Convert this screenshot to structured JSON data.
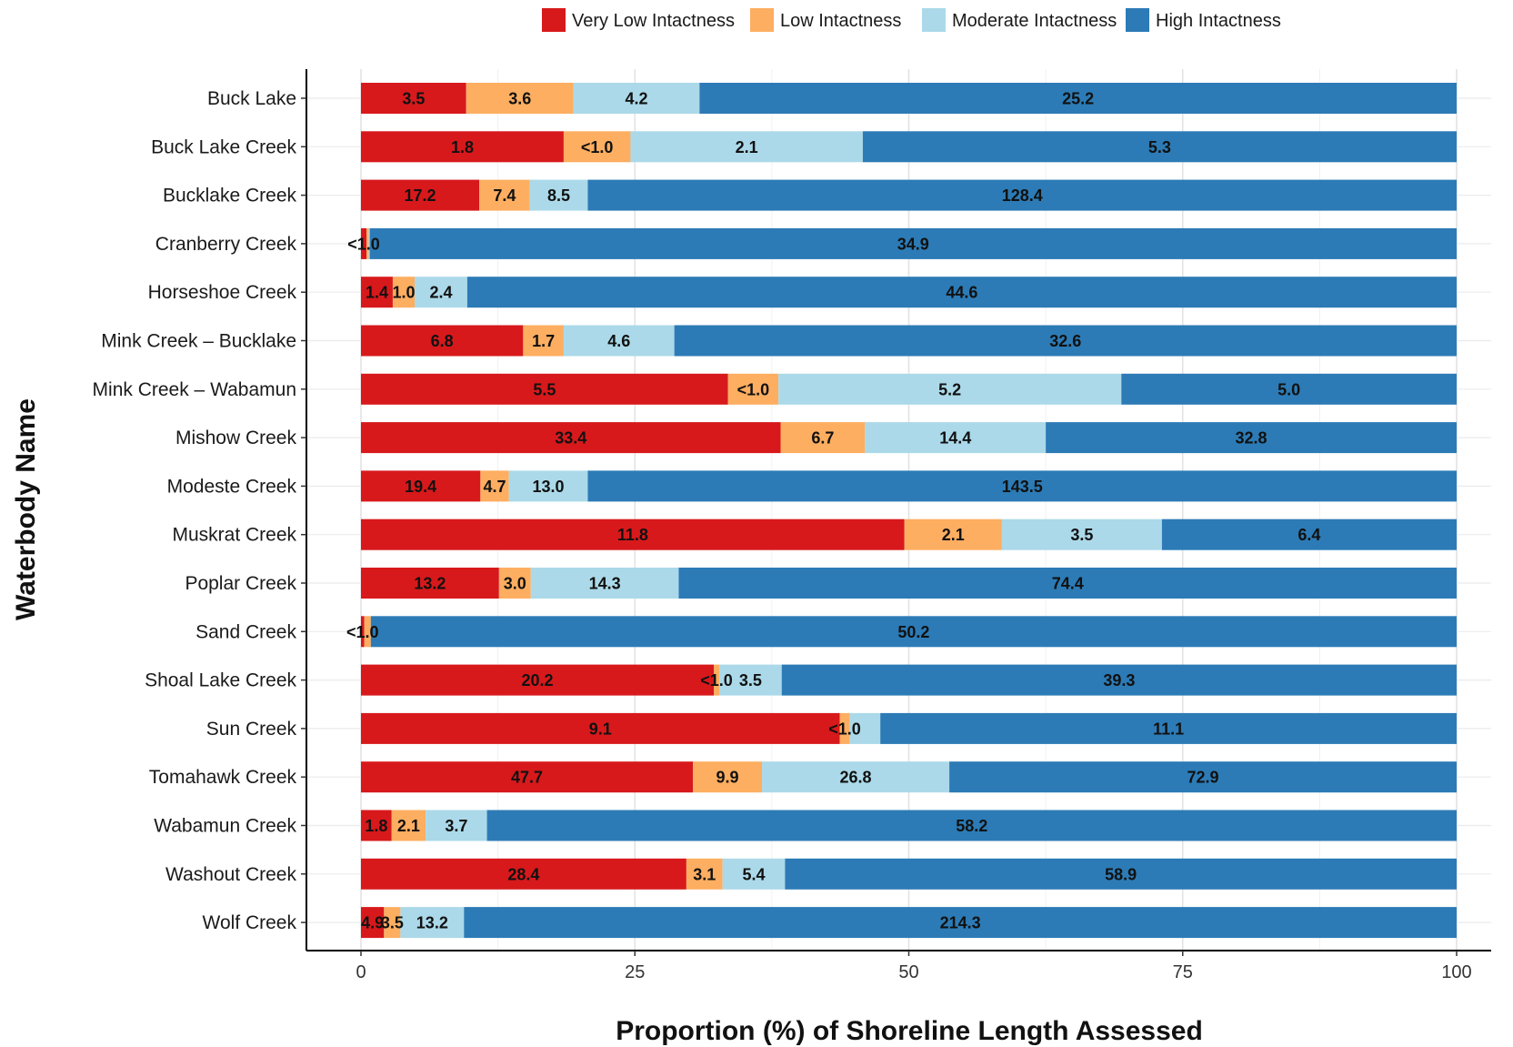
{
  "chart_data": {
    "type": "bar",
    "orientation": "horizontal",
    "stacked": true,
    "title": "",
    "xlabel": "Proportion (%) of Shoreline Length Assessed",
    "ylabel": "Waterbody Name",
    "xlim": [
      0,
      100
    ],
    "xticks": [
      0,
      25,
      50,
      75,
      100
    ],
    "grid": true,
    "legend_position": "top",
    "categories": [
      "Buck Lake",
      "Buck Lake Creek",
      "Bucklake Creek",
      "Cranberry Creek",
      "Horseshoe Creek",
      "Mink Creek – Bucklake",
      "Mink Creek – Wabamun",
      "Mishow Creek",
      "Modeste Creek",
      "Muskrat Creek",
      "Poplar Creek",
      "Sand Creek",
      "Shoal Lake Creek",
      "Sun Creek",
      "Tomahawk Creek",
      "Wabamun Creek",
      "Washout Creek",
      "Wolf Creek"
    ],
    "series": [
      {
        "name": "Very Low Intactness",
        "color": "#d7191c",
        "values": [
          9.6,
          18.5,
          10.8,
          0.5,
          2.9,
          14.8,
          33.5,
          38.3,
          10.9,
          49.6,
          12.6,
          0.3,
          32.2,
          43.7,
          30.3,
          2.8,
          29.7,
          2.1
        ],
        "labels": [
          "3.5",
          "1.8",
          "17.2",
          "<1.0",
          "1.4",
          "6.8",
          "5.5",
          "33.4",
          "19.4",
          "11.8",
          "13.2",
          "<1.0",
          "20.2",
          "9.1",
          "47.7",
          "1.8",
          "28.4",
          "4.9"
        ]
      },
      {
        "name": "Low Intactness",
        "color": "#fdae61",
        "values": [
          9.8,
          6.1,
          4.6,
          0.2,
          2.0,
          3.7,
          4.6,
          7.7,
          2.6,
          8.9,
          2.9,
          0.6,
          0.5,
          0.9,
          6.3,
          3.1,
          3.3,
          1.5
        ],
        "labels": [
          "3.6",
          "<1.0",
          "7.4",
          "",
          "1.0",
          "1.7",
          "<1.0",
          "6.7",
          "4.7",
          "2.1",
          "3.0",
          "",
          "<1.0",
          "<1.0",
          "9.9",
          "2.1",
          "3.1",
          "3.5"
        ]
      },
      {
        "name": "Moderate Intactness",
        "color": "#abd9e9",
        "values": [
          11.5,
          21.2,
          5.3,
          0.1,
          4.8,
          10.1,
          31.3,
          16.5,
          7.2,
          14.6,
          13.5,
          0.0,
          5.7,
          2.8,
          17.1,
          5.6,
          5.7,
          5.8
        ],
        "labels": [
          "4.2",
          "2.1",
          "8.5",
          "",
          "2.4",
          "4.6",
          "5.2",
          "14.4",
          "13.0",
          "3.5",
          "14.3",
          "",
          "3.5",
          "",
          "26.8",
          "3.7",
          "5.4",
          "13.2"
        ]
      },
      {
        "name": "High Intactness",
        "color": "#2c7bb6",
        "values": [
          69.1,
          54.2,
          79.3,
          99.2,
          90.3,
          71.4,
          30.6,
          37.5,
          79.3,
          26.9,
          71.0,
          99.1,
          61.6,
          52.6,
          46.3,
          88.5,
          61.3,
          90.6
        ],
        "labels": [
          "25.2",
          "5.3",
          "128.4",
          "34.9",
          "44.6",
          "32.6",
          "5.0",
          "32.8",
          "143.5",
          "6.4",
          "74.4",
          "50.2",
          "39.3",
          "11.1",
          "72.9",
          "58.2",
          "58.9",
          "214.3"
        ]
      }
    ]
  }
}
